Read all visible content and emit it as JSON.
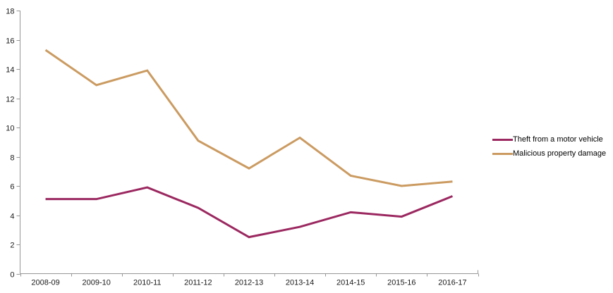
{
  "chart_data": {
    "type": "line",
    "title": "",
    "xlabel": "",
    "ylabel": "",
    "categories": [
      "2008-09",
      "2009-10",
      "2010-11",
      "2011-12",
      "2012-13",
      "2013-14",
      "2014-15",
      "2015-16",
      "2016-17"
    ],
    "series": [
      {
        "name": "Theft from a motor vehicle",
        "color": "#9b2860",
        "values": [
          5.1,
          5.1,
          5.9,
          4.5,
          2.5,
          3.2,
          4.2,
          3.9,
          5.3
        ]
      },
      {
        "name": "Malicious property damage",
        "color": "#cb9b61",
        "values": [
          15.3,
          12.9,
          13.9,
          9.1,
          7.2,
          9.3,
          6.7,
          6.0,
          6.3
        ]
      }
    ],
    "ylim": [
      0,
      18
    ],
    "ytick_step": 2,
    "ytick_labels": [
      "0",
      "2",
      "4",
      "6",
      "8",
      "10",
      "12",
      "14",
      "16",
      "18"
    ],
    "grid": false,
    "legend_position": "right",
    "axis_color": "#969696",
    "tick_label_color": "#1a1a1a",
    "line_width": 3
  }
}
